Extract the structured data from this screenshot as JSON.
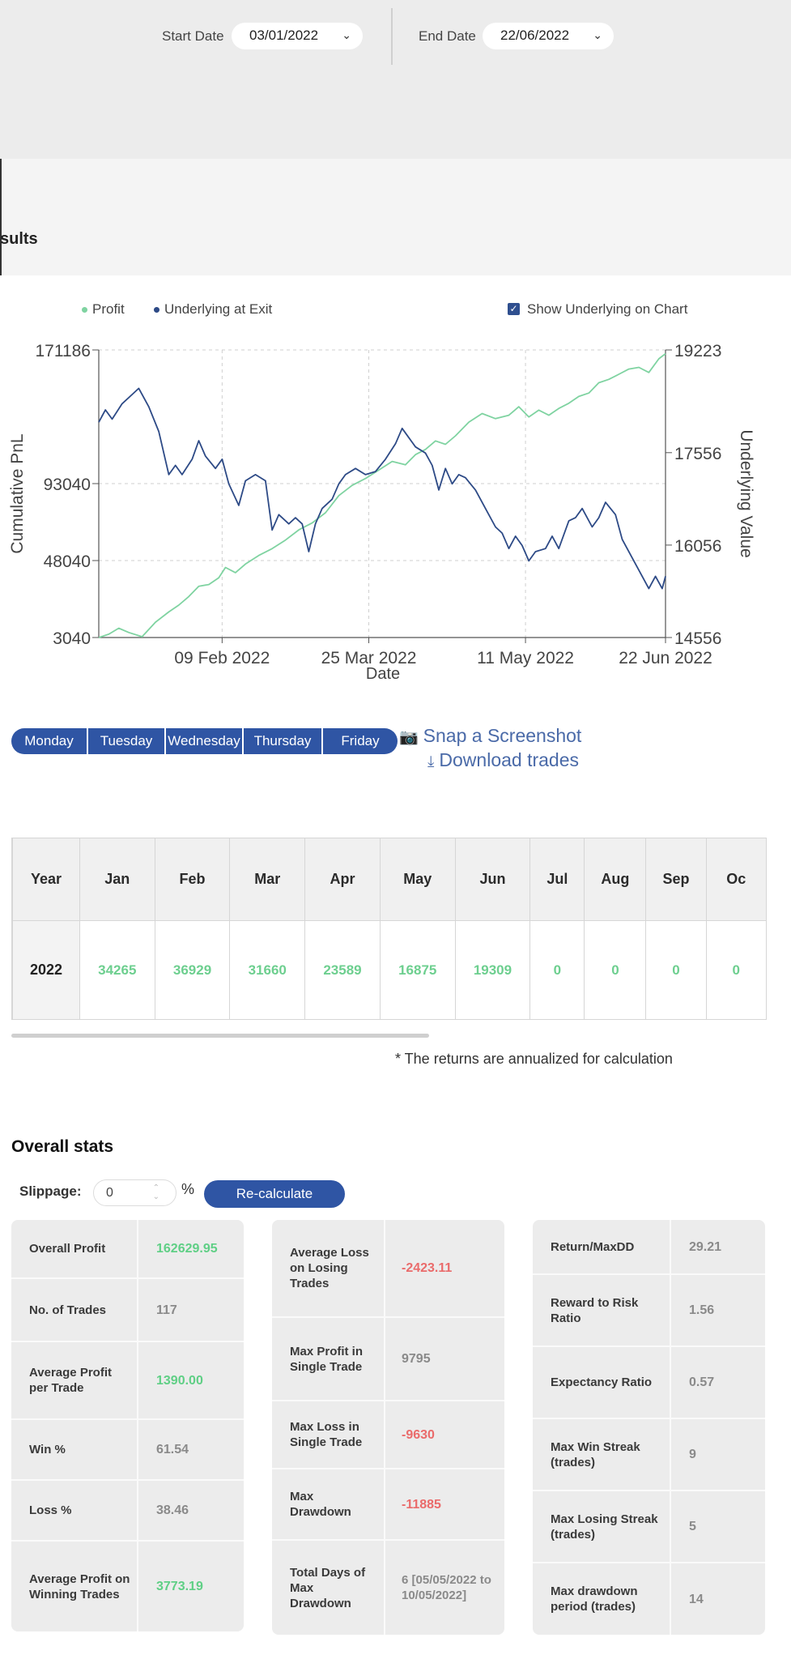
{
  "filters": {
    "start_label": "Start Date",
    "start_value": "03/01/2022",
    "end_label": "End Date",
    "end_value": "22/06/2022"
  },
  "results_title": "sults",
  "legend": {
    "profit": "Profit",
    "underlying": "Underlying at Exit",
    "show_underlying": "Show Underlying on Chart",
    "show_underlying_checked": true
  },
  "colors": {
    "profit": "#7fd3a1",
    "underlying": "#2d4a86",
    "accent": "#2f55a4",
    "positive": "#5fcf85",
    "negative": "#ea6b6b"
  },
  "chart_data": {
    "type": "line",
    "xlabel": "Date",
    "ylabel_left": "Cumulative PnL",
    "ylabel_right": "Underlying Value",
    "x_range": [
      "2022-01-03",
      "2022-06-22"
    ],
    "x_ticks": [
      {
        "date": "2022-02-09",
        "label": "09 Feb 2022"
      },
      {
        "date": "2022-03-25",
        "label": "25 Mar 2022"
      },
      {
        "date": "2022-05-11",
        "label": "11 May 2022"
      },
      {
        "date": "2022-06-22",
        "label": "22 Jun 2022"
      }
    ],
    "y_left_ticks": [
      3040,
      48040,
      93040,
      171186
    ],
    "y_right_ticks": [
      14556,
      16056,
      17556,
      19223
    ],
    "ylim_left": [
      3040,
      171186
    ],
    "ylim_right": [
      14556,
      19223
    ],
    "grid": true,
    "legend_position": "top",
    "series": [
      {
        "name": "Profit",
        "axis": "left",
        "points": [
          [
            "2022-01-03",
            3040
          ],
          [
            "2022-01-06",
            5000
          ],
          [
            "2022-01-09",
            8500
          ],
          [
            "2022-01-12",
            6000
          ],
          [
            "2022-01-16",
            3500
          ],
          [
            "2022-01-20",
            12000
          ],
          [
            "2022-01-24",
            18000
          ],
          [
            "2022-01-27",
            22000
          ],
          [
            "2022-01-30",
            27000
          ],
          [
            "2022-02-02",
            33000
          ],
          [
            "2022-02-05",
            34000
          ],
          [
            "2022-02-08",
            38000
          ],
          [
            "2022-02-10",
            44000
          ],
          [
            "2022-02-13",
            41000
          ],
          [
            "2022-02-16",
            46000
          ],
          [
            "2022-02-20",
            51000
          ],
          [
            "2022-02-24",
            55000
          ],
          [
            "2022-02-28",
            60000
          ],
          [
            "2022-03-04",
            66000
          ],
          [
            "2022-03-08",
            70000
          ],
          [
            "2022-03-12",
            76000
          ],
          [
            "2022-03-16",
            86000
          ],
          [
            "2022-03-20",
            92000
          ],
          [
            "2022-03-24",
            96000
          ],
          [
            "2022-03-28",
            101000
          ],
          [
            "2022-04-01",
            106000
          ],
          [
            "2022-04-05",
            104000
          ],
          [
            "2022-04-08",
            110000
          ],
          [
            "2022-04-11",
            113000
          ],
          [
            "2022-04-14",
            118000
          ],
          [
            "2022-04-17",
            116000
          ],
          [
            "2022-04-20",
            121000
          ],
          [
            "2022-04-24",
            129000
          ],
          [
            "2022-04-28",
            134000
          ],
          [
            "2022-05-02",
            131000
          ],
          [
            "2022-05-06",
            133000
          ],
          [
            "2022-05-09",
            138000
          ],
          [
            "2022-05-12",
            132000
          ],
          [
            "2022-05-15",
            136000
          ],
          [
            "2022-05-18",
            133000
          ],
          [
            "2022-05-21",
            137000
          ],
          [
            "2022-05-24",
            140000
          ],
          [
            "2022-05-27",
            144000
          ],
          [
            "2022-05-30",
            146000
          ],
          [
            "2022-06-02",
            152000
          ],
          [
            "2022-06-05",
            154000
          ],
          [
            "2022-06-08",
            157000
          ],
          [
            "2022-06-11",
            160000
          ],
          [
            "2022-06-14",
            161000
          ],
          [
            "2022-06-17",
            158000
          ],
          [
            "2022-06-20",
            166000
          ],
          [
            "2022-06-22",
            169000
          ]
        ]
      },
      {
        "name": "Underlying at Exit",
        "axis": "right",
        "points": [
          [
            "2022-01-03",
            18050
          ],
          [
            "2022-01-05",
            18250
          ],
          [
            "2022-01-07",
            18100
          ],
          [
            "2022-01-10",
            18350
          ],
          [
            "2022-01-13",
            18500
          ],
          [
            "2022-01-15",
            18600
          ],
          [
            "2022-01-18",
            18300
          ],
          [
            "2022-01-21",
            17900
          ],
          [
            "2022-01-24",
            17200
          ],
          [
            "2022-01-26",
            17350
          ],
          [
            "2022-01-28",
            17200
          ],
          [
            "2022-01-31",
            17450
          ],
          [
            "2022-02-02",
            17750
          ],
          [
            "2022-02-04",
            17500
          ],
          [
            "2022-02-07",
            17300
          ],
          [
            "2022-02-09",
            17450
          ],
          [
            "2022-02-11",
            17050
          ],
          [
            "2022-02-14",
            16700
          ],
          [
            "2022-02-16",
            17100
          ],
          [
            "2022-02-19",
            17200
          ],
          [
            "2022-02-22",
            17100
          ],
          [
            "2022-02-24",
            16300
          ],
          [
            "2022-02-26",
            16550
          ],
          [
            "2022-03-01",
            16400
          ],
          [
            "2022-03-03",
            16500
          ],
          [
            "2022-03-05",
            16400
          ],
          [
            "2022-03-07",
            15950
          ],
          [
            "2022-03-09",
            16400
          ],
          [
            "2022-03-11",
            16650
          ],
          [
            "2022-03-14",
            16800
          ],
          [
            "2022-03-16",
            17050
          ],
          [
            "2022-03-18",
            17200
          ],
          [
            "2022-03-21",
            17300
          ],
          [
            "2022-03-24",
            17200
          ],
          [
            "2022-03-27",
            17250
          ],
          [
            "2022-03-30",
            17450
          ],
          [
            "2022-04-02",
            17700
          ],
          [
            "2022-04-04",
            17950
          ],
          [
            "2022-04-06",
            17800
          ],
          [
            "2022-04-08",
            17650
          ],
          [
            "2022-04-11",
            17550
          ],
          [
            "2022-04-13",
            17350
          ],
          [
            "2022-04-15",
            16950
          ],
          [
            "2022-04-17",
            17300
          ],
          [
            "2022-04-19",
            17050
          ],
          [
            "2022-04-21",
            17200
          ],
          [
            "2022-04-23",
            17150
          ],
          [
            "2022-04-26",
            16950
          ],
          [
            "2022-04-29",
            16650
          ],
          [
            "2022-05-02",
            16350
          ],
          [
            "2022-05-04",
            16250
          ],
          [
            "2022-05-06",
            16000
          ],
          [
            "2022-05-08",
            16200
          ],
          [
            "2022-05-10",
            16050
          ],
          [
            "2022-05-12",
            15800
          ],
          [
            "2022-05-14",
            15950
          ],
          [
            "2022-05-17",
            16000
          ],
          [
            "2022-05-19",
            16200
          ],
          [
            "2022-05-21",
            16000
          ],
          [
            "2022-05-24",
            16450
          ],
          [
            "2022-05-26",
            16500
          ],
          [
            "2022-05-28",
            16650
          ],
          [
            "2022-05-31",
            16350
          ],
          [
            "2022-06-02",
            16500
          ],
          [
            "2022-06-04",
            16750
          ],
          [
            "2022-06-07",
            16550
          ],
          [
            "2022-06-09",
            16150
          ],
          [
            "2022-06-12",
            15850
          ],
          [
            "2022-06-15",
            15550
          ],
          [
            "2022-06-17",
            15350
          ],
          [
            "2022-06-19",
            15550
          ],
          [
            "2022-06-21",
            15350
          ],
          [
            "2022-06-22",
            15550
          ]
        ]
      }
    ]
  },
  "weekdays": [
    "Monday",
    "Tuesday",
    "Wednesday",
    "Thursday",
    "Friday"
  ],
  "actions": {
    "screenshot": "Snap a Screenshot",
    "download": "Download trades"
  },
  "monthly": {
    "headers": [
      "Year",
      "Jan",
      "Feb",
      "Mar",
      "Apr",
      "May",
      "Jun",
      "Jul",
      "Aug",
      "Sep",
      "Oc"
    ],
    "rows": [
      [
        "2022",
        "34265",
        "36929",
        "31660",
        "23589",
        "16875",
        "19309",
        "0",
        "0",
        "0",
        "0"
      ]
    ]
  },
  "footnote": "* The returns are annualized for calculation",
  "overall": {
    "title": "Overall stats",
    "slippage_label": "Slippage:",
    "slippage_value": "0",
    "slippage_unit": "%",
    "recalc_label": "Re-calculate"
  },
  "stats": {
    "col1": [
      {
        "label": "Overall Profit",
        "value": "162629.95",
        "tone": "pos"
      },
      {
        "label": "No. of Trades",
        "value": "117",
        "tone": ""
      },
      {
        "label": "Average Profit per Trade",
        "value": "1390.00",
        "tone": "pos"
      },
      {
        "label": "Win %",
        "value": "61.54",
        "tone": ""
      },
      {
        "label": "Loss %",
        "value": "38.46",
        "tone": ""
      },
      {
        "label": "Average Profit on Winning Trades",
        "value": "3773.19",
        "tone": "pos"
      }
    ],
    "col2": [
      {
        "label": "Average Loss on Losing Trades",
        "value": "-2423.11",
        "tone": "neg"
      },
      {
        "label": "Max Profit in Single Trade",
        "value": "9795",
        "tone": ""
      },
      {
        "label": "Max Loss in Single Trade",
        "value": "-9630",
        "tone": "neg"
      },
      {
        "label": "Max Drawdown",
        "value": "-11885",
        "tone": "neg"
      },
      {
        "label": "Total Days of Max Drawdown",
        "value": "6 [05/05/2022 to 10/05/2022]",
        "tone": ""
      }
    ],
    "col3": [
      {
        "label": "Return/MaxDD",
        "value": "29.21",
        "tone": ""
      },
      {
        "label": "Reward to Risk Ratio",
        "value": "1.56",
        "tone": ""
      },
      {
        "label": "Expectancy Ratio",
        "value": "0.57",
        "tone": ""
      },
      {
        "label": "Max Win Streak (trades)",
        "value": "9",
        "tone": ""
      },
      {
        "label": "Max Losing Streak (trades)",
        "value": "5",
        "tone": ""
      },
      {
        "label": "Max drawdown period (trades)",
        "value": "14",
        "tone": ""
      }
    ]
  }
}
